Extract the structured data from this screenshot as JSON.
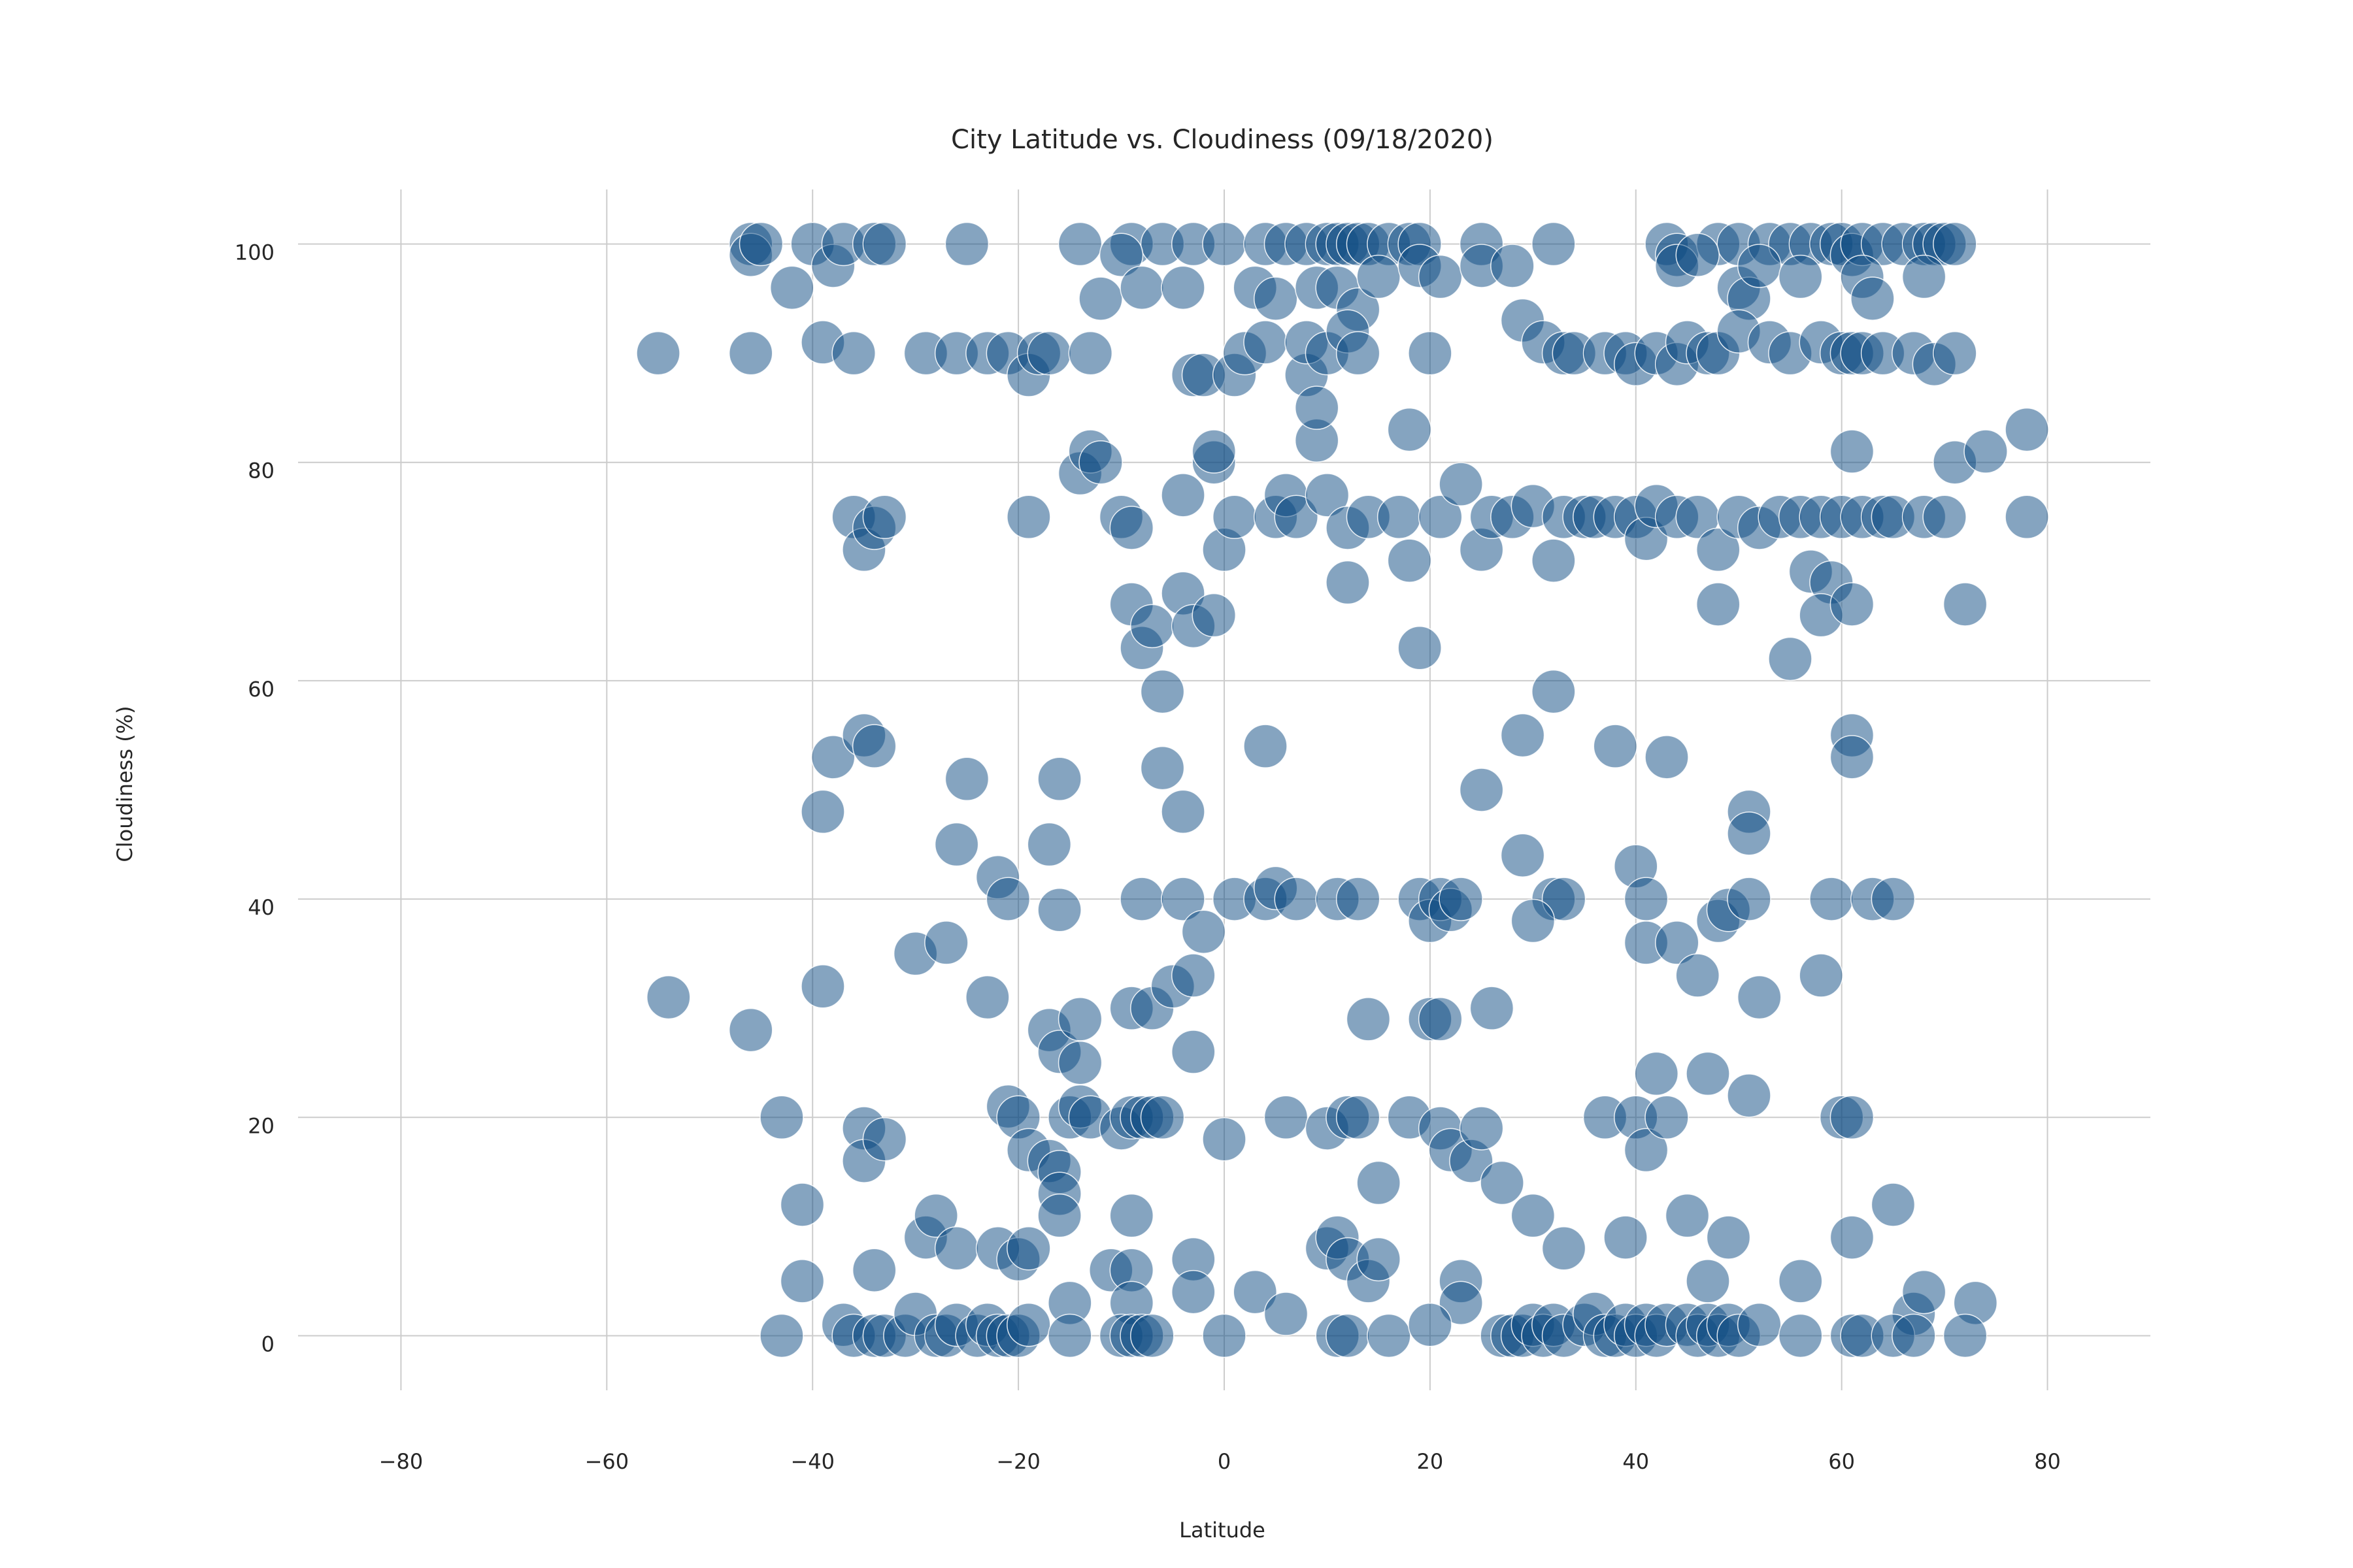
{
  "chart_data": {
    "type": "scatter",
    "title": "City Latitude vs. Cloudiness (09/18/2020)",
    "xlabel": "Latitude",
    "ylabel": "Cloudiness (%)",
    "xlim": [
      -90,
      90
    ],
    "ylim": [
      -5,
      105
    ],
    "xticks": [
      -80,
      -60,
      -40,
      -20,
      0,
      20,
      40,
      60,
      80
    ],
    "yticks": [
      0,
      20,
      40,
      60,
      80,
      100
    ],
    "xtick_labels": [
      "−80",
      "−60",
      "−40",
      "−20",
      "0",
      "20",
      "40",
      "60",
      "80"
    ],
    "ytick_labels": [
      "0",
      "20",
      "40",
      "60",
      "80",
      "100"
    ],
    "grid": true,
    "marker_color": "#0b4a82",
    "marker_edge_color": "#ffffff",
    "points": [
      [
        -46,
        100
      ],
      [
        -46,
        99
      ],
      [
        -45,
        100
      ],
      [
        -40,
        100
      ],
      [
        -38,
        98
      ],
      [
        -37,
        100
      ],
      [
        -34,
        100
      ],
      [
        -33,
        100
      ],
      [
        -25,
        100
      ],
      [
        -14,
        100
      ],
      [
        -9,
        100
      ],
      [
        -6,
        100
      ],
      [
        -3,
        100
      ],
      [
        0,
        100
      ],
      [
        4,
        100
      ],
      [
        6,
        100
      ],
      [
        8,
        100
      ],
      [
        10,
        100
      ],
      [
        11,
        100
      ],
      [
        12,
        100
      ],
      [
        13,
        100
      ],
      [
        14,
        100
      ],
      [
        16,
        100
      ],
      [
        18,
        100
      ],
      [
        19,
        100
      ],
      [
        25,
        100
      ],
      [
        32,
        100
      ],
      [
        43,
        100
      ],
      [
        44,
        99
      ],
      [
        48,
        100
      ],
      [
        50,
        100
      ],
      [
        53,
        100
      ],
      [
        55,
        100
      ],
      [
        57,
        100
      ],
      [
        59,
        100
      ],
      [
        60,
        100
      ],
      [
        61,
        99
      ],
      [
        62,
        100
      ],
      [
        64,
        100
      ],
      [
        66,
        100
      ],
      [
        68,
        100
      ],
      [
        69,
        100
      ],
      [
        70,
        100
      ],
      [
        71,
        100
      ],
      [
        -42,
        96
      ],
      [
        -12,
        95
      ],
      [
        -10,
        99
      ],
      [
        -8,
        96
      ],
      [
        -4,
        96
      ],
      [
        3,
        96
      ],
      [
        5,
        95
      ],
      [
        9,
        96
      ],
      [
        11,
        96
      ],
      [
        13,
        94
      ],
      [
        15,
        97
      ],
      [
        19,
        98
      ],
      [
        21,
        97
      ],
      [
        25,
        98
      ],
      [
        28,
        98
      ],
      [
        44,
        98
      ],
      [
        46,
        99
      ],
      [
        50,
        96
      ],
      [
        51,
        95
      ],
      [
        52,
        98
      ],
      [
        56,
        97
      ],
      [
        62,
        97
      ],
      [
        63,
        95
      ],
      [
        68,
        97
      ],
      [
        -55,
        90
      ],
      [
        -46,
        90
      ],
      [
        -39,
        91
      ],
      [
        -36,
        90
      ],
      [
        -29,
        90
      ],
      [
        -26,
        90
      ],
      [
        -23,
        90
      ],
      [
        -21,
        90
      ],
      [
        -19,
        88
      ],
      [
        -18,
        90
      ],
      [
        -17,
        90
      ],
      [
        -13,
        90
      ],
      [
        -3,
        88
      ],
      [
        -2,
        88
      ],
      [
        1,
        88
      ],
      [
        2,
        90
      ],
      [
        4,
        91
      ],
      [
        8,
        88
      ],
      [
        8,
        91
      ],
      [
        10,
        90
      ],
      [
        12,
        92
      ],
      [
        13,
        90
      ],
      [
        20,
        90
      ],
      [
        29,
        93
      ],
      [
        31,
        91
      ],
      [
        33,
        90
      ],
      [
        34,
        90
      ],
      [
        37,
        90
      ],
      [
        39,
        90
      ],
      [
        40,
        89
      ],
      [
        42,
        90
      ],
      [
        44,
        89
      ],
      [
        45,
        91
      ],
      [
        47,
        90
      ],
      [
        48,
        90
      ],
      [
        50,
        92
      ],
      [
        53,
        91
      ],
      [
        55,
        90
      ],
      [
        58,
        91
      ],
      [
        60,
        90
      ],
      [
        61,
        90
      ],
      [
        62,
        90
      ],
      [
        64,
        90
      ],
      [
        67,
        90
      ],
      [
        69,
        89
      ],
      [
        71,
        90
      ],
      [
        -36,
        75
      ],
      [
        -35,
        72
      ],
      [
        -34,
        74
      ],
      [
        -33,
        75
      ],
      [
        -19,
        75
      ],
      [
        -14,
        79
      ],
      [
        -13,
        81
      ],
      [
        -12,
        80
      ],
      [
        -10,
        75
      ],
      [
        -9,
        74
      ],
      [
        -4,
        77
      ],
      [
        -1,
        80
      ],
      [
        -1,
        81
      ],
      [
        0,
        72
      ],
      [
        1,
        75
      ],
      [
        5,
        75
      ],
      [
        6,
        77
      ],
      [
        7,
        75
      ],
      [
        9,
        82
      ],
      [
        9,
        85
      ],
      [
        10,
        77
      ],
      [
        12,
        74
      ],
      [
        14,
        75
      ],
      [
        17,
        75
      ],
      [
        18,
        83
      ],
      [
        18,
        71
      ],
      [
        21,
        75
      ],
      [
        23,
        78
      ],
      [
        25,
        72
      ],
      [
        26,
        75
      ],
      [
        28,
        75
      ],
      [
        30,
        76
      ],
      [
        32,
        71
      ],
      [
        33,
        75
      ],
      [
        35,
        75
      ],
      [
        36,
        75
      ],
      [
        38,
        75
      ],
      [
        40,
        75
      ],
      [
        41,
        73
      ],
      [
        42,
        76
      ],
      [
        44,
        75
      ],
      [
        46,
        75
      ],
      [
        48,
        72
      ],
      [
        50,
        75
      ],
      [
        52,
        74
      ],
      [
        54,
        75
      ],
      [
        56,
        75
      ],
      [
        57,
        70
      ],
      [
        58,
        75
      ],
      [
        59,
        69
      ],
      [
        60,
        75
      ],
      [
        61,
        81
      ],
      [
        62,
        75
      ],
      [
        64,
        75
      ],
      [
        65,
        75
      ],
      [
        68,
        75
      ],
      [
        70,
        75
      ],
      [
        71,
        80
      ],
      [
        72,
        67
      ],
      [
        74,
        81
      ],
      [
        78,
        83
      ],
      [
        78,
        75
      ],
      [
        -9,
        67
      ],
      [
        -8,
        63
      ],
      [
        -7,
        65
      ],
      [
        -6,
        59
      ],
      [
        -4,
        68
      ],
      [
        -3,
        65
      ],
      [
        -1,
        66
      ],
      [
        12,
        69
      ],
      [
        19,
        63
      ],
      [
        48,
        67
      ],
      [
        55,
        62
      ],
      [
        58,
        66
      ],
      [
        61,
        67
      ],
      [
        -38,
        53
      ],
      [
        -39,
        48
      ],
      [
        -35,
        55
      ],
      [
        -34,
        54
      ],
      [
        -25,
        51
      ],
      [
        -26,
        45
      ],
      [
        -16,
        51
      ],
      [
        -17,
        45
      ],
      [
        -6,
        52
      ],
      [
        -4,
        48
      ],
      [
        4,
        54
      ],
      [
        25,
        50
      ],
      [
        29,
        55
      ],
      [
        32,
        59
      ],
      [
        38,
        54
      ],
      [
        43,
        53
      ],
      [
        51,
        48
      ],
      [
        51,
        46
      ],
      [
        61,
        55
      ],
      [
        61,
        53
      ],
      [
        -22,
        42
      ],
      [
        -21,
        40
      ],
      [
        -16,
        39
      ],
      [
        -8,
        40
      ],
      [
        -4,
        40
      ],
      [
        -2,
        37
      ],
      [
        1,
        40
      ],
      [
        4,
        40
      ],
      [
        5,
        41
      ],
      [
        7,
        40
      ],
      [
        11,
        40
      ],
      [
        13,
        40
      ],
      [
        19,
        40
      ],
      [
        20,
        38
      ],
      [
        21,
        40
      ],
      [
        22,
        39
      ],
      [
        23,
        40
      ],
      [
        32,
        40
      ],
      [
        33,
        40
      ],
      [
        40,
        43
      ],
      [
        41,
        40
      ],
      [
        41,
        36
      ],
      [
        44,
        36
      ],
      [
        46,
        33
      ],
      [
        48,
        38
      ],
      [
        49,
        39
      ],
      [
        51,
        40
      ],
      [
        58,
        33
      ],
      [
        59,
        40
      ],
      [
        63,
        40
      ],
      [
        65,
        40
      ],
      [
        -54,
        31
      ],
      [
        -46,
        28
      ],
      [
        -39,
        32
      ],
      [
        -30,
        35
      ],
      [
        -27,
        36
      ],
      [
        -23,
        31
      ],
      [
        -17,
        28
      ],
      [
        -16,
        26
      ],
      [
        -14,
        29
      ],
      [
        -14,
        25
      ],
      [
        -9,
        30
      ],
      [
        -7,
        30
      ],
      [
        -5,
        32
      ],
      [
        -3,
        33
      ],
      [
        -3,
        26
      ],
      [
        14,
        29
      ],
      [
        20,
        29
      ],
      [
        21,
        29
      ],
      [
        26,
        30
      ],
      [
        30,
        38
      ],
      [
        29,
        44
      ],
      [
        42,
        24
      ],
      [
        47,
        24
      ],
      [
        52,
        31
      ],
      [
        -43,
        20
      ],
      [
        -35,
        19
      ],
      [
        -35,
        16
      ],
      [
        -33,
        18
      ],
      [
        -21,
        21
      ],
      [
        -20,
        20
      ],
      [
        -19,
        17
      ],
      [
        -17,
        16
      ],
      [
        -16,
        15
      ],
      [
        -16,
        13
      ],
      [
        -16,
        11
      ],
      [
        -15,
        20
      ],
      [
        -14,
        21
      ],
      [
        -13,
        20
      ],
      [
        -10,
        19
      ],
      [
        -9,
        20
      ],
      [
        -8,
        20
      ],
      [
        -7,
        20
      ],
      [
        -6,
        20
      ],
      [
        0,
        18
      ],
      [
        6,
        20
      ],
      [
        10,
        19
      ],
      [
        12,
        20
      ],
      [
        13,
        20
      ],
      [
        15,
        14
      ],
      [
        18,
        20
      ],
      [
        21,
        19
      ],
      [
        22,
        17
      ],
      [
        24,
        16
      ],
      [
        25,
        19
      ],
      [
        27,
        14
      ],
      [
        37,
        20
      ],
      [
        40,
        20
      ],
      [
        41,
        17
      ],
      [
        43,
        20
      ],
      [
        51,
        22
      ],
      [
        60,
        20
      ],
      [
        61,
        20
      ],
      [
        -41,
        12
      ],
      [
        -41,
        5
      ],
      [
        -34,
        6
      ],
      [
        -29,
        9
      ],
      [
        -28,
        11
      ],
      [
        -26,
        8
      ],
      [
        -22,
        8
      ],
      [
        -20,
        7
      ],
      [
        -19,
        8
      ],
      [
        -15,
        3
      ],
      [
        -11,
        6
      ],
      [
        -9,
        6
      ],
      [
        -9,
        11
      ],
      [
        -9,
        3
      ],
      [
        -3,
        7
      ],
      [
        -3,
        4
      ],
      [
        3,
        4
      ],
      [
        6,
        2
      ],
      [
        10,
        8
      ],
      [
        11,
        9
      ],
      [
        12,
        7
      ],
      [
        14,
        5
      ],
      [
        15,
        7
      ],
      [
        23,
        5
      ],
      [
        23,
        3
      ],
      [
        30,
        11
      ],
      [
        33,
        8
      ],
      [
        39,
        9
      ],
      [
        45,
        11
      ],
      [
        47,
        5
      ],
      [
        49,
        9
      ],
      [
        56,
        5
      ],
      [
        61,
        9
      ],
      [
        65,
        12
      ],
      [
        67,
        2
      ],
      [
        68,
        4
      ],
      [
        73,
        3
      ],
      [
        -43,
        0
      ],
      [
        -37,
        1
      ],
      [
        -36,
        0
      ],
      [
        -34,
        0
      ],
      [
        -33,
        0
      ],
      [
        -31,
        0
      ],
      [
        -30,
        2
      ],
      [
        -28,
        0
      ],
      [
        -27,
        0
      ],
      [
        -26,
        1
      ],
      [
        -24,
        0
      ],
      [
        -23,
        1
      ],
      [
        -22,
        0
      ],
      [
        -21,
        0
      ],
      [
        -20,
        0
      ],
      [
        -19,
        1
      ],
      [
        -15,
        0
      ],
      [
        -10,
        0
      ],
      [
        -9,
        0
      ],
      [
        -8,
        0
      ],
      [
        -7,
        0
      ],
      [
        0,
        0
      ],
      [
        11,
        0
      ],
      [
        12,
        0
      ],
      [
        16,
        0
      ],
      [
        20,
        1
      ],
      [
        27,
        0
      ],
      [
        28,
        0
      ],
      [
        29,
        0
      ],
      [
        30,
        1
      ],
      [
        31,
        0
      ],
      [
        32,
        1
      ],
      [
        33,
        0
      ],
      [
        35,
        1
      ],
      [
        36,
        2
      ],
      [
        37,
        0
      ],
      [
        38,
        0
      ],
      [
        39,
        1
      ],
      [
        40,
        0
      ],
      [
        41,
        1
      ],
      [
        42,
        0
      ],
      [
        43,
        1
      ],
      [
        45,
        1
      ],
      [
        46,
        0
      ],
      [
        47,
        1
      ],
      [
        48,
        0
      ],
      [
        49,
        1
      ],
      [
        50,
        0
      ],
      [
        52,
        1
      ],
      [
        56,
        0
      ],
      [
        61,
        0
      ],
      [
        62,
        0
      ],
      [
        65,
        0
      ],
      [
        67,
        0
      ],
      [
        72,
        0
      ]
    ]
  }
}
